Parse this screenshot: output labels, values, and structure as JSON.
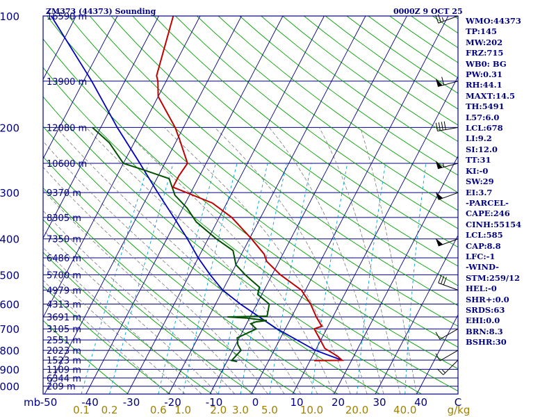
{
  "header": {
    "station": "ZM373 (44373) Sounding",
    "datetime": "0000Z  9 OCT 25"
  },
  "indices": [
    "WMO:44373",
    "TP:145",
    "MW:202",
    "FRZ:715",
    "WB0: BG",
    "PW:0.31",
    "RH:44.1",
    "MAXT:14.5",
    "TH:5491",
    "L57:6.0",
    "LCL:678",
    "LI:9.2",
    "SI:12.0",
    "TT:31",
    "KI:-0",
    "SW:29",
    "EI:3.7",
    "-PARCEL-",
    "CAPE:246",
    "CINH:55154",
    "LCL:585",
    "CAP:8.8",
    "LFC:-1",
    "-WIND-",
    "STM:259/12",
    "HEL:-0",
    "SHR+:0.0",
    "SRDS:63",
    "EHI:0.0",
    "BRN:8.3",
    "BSHR:30"
  ],
  "colors": {
    "frame": "#000080",
    "isobar": "#000080",
    "isotherm": "#000080",
    "dry_adiabat": "#00a000",
    "moist_adiabat": "#7a7a7a",
    "mixing_ratio": "#00a0d0",
    "temperature": "#c00000",
    "dewpoint": "#005000",
    "parcel": "#0000c0",
    "wind": "#000000",
    "axis_text": "#000080",
    "mixing_text": "#a08000"
  },
  "chart_data": {
    "type": "skew-t",
    "title": "ZM373 (44373) Sounding",
    "pressure_axis": {
      "unit": "mb",
      "range": [
        1050,
        100
      ],
      "ticks": [
        100,
        200,
        300,
        400,
        500,
        600,
        700,
        800,
        900,
        1000
      ]
    },
    "temperature_axis": {
      "unit": "C",
      "range": [
        -50,
        50
      ],
      "ticks": [
        -50,
        -40,
        -30,
        -20,
        -10,
        0,
        10,
        20,
        30,
        40
      ],
      "labels": [
        "-50",
        "-40",
        "-30",
        "-20",
        "-10",
        "0",
        "10",
        "20",
        "30",
        "40"
      ]
    },
    "mixing_ratio_axis": {
      "unit": "g/kg",
      "values": [
        0.1,
        0.2,
        0.6,
        1.0,
        2.0,
        3.0,
        5.0,
        10.0,
        20.0,
        40.0
      ],
      "labels": [
        "0.1",
        "0.2",
        "0.6",
        "1.0",
        "2.0",
        "3.0",
        "5.0",
        "10.0",
        "20.0",
        "40.0"
      ]
    },
    "heights": [
      {
        "p": 100,
        "label": "16590 m"
      },
      {
        "p": 150,
        "label": "13900 m"
      },
      {
        "p": 200,
        "label": "12080 m"
      },
      {
        "p": 250,
        "label": "10600 m"
      },
      {
        "p": 300,
        "label": "9370 m"
      },
      {
        "p": 350,
        "label": "8305 m"
      },
      {
        "p": 400,
        "label": "7350 m"
      },
      {
        "p": 450,
        "label": "6486 m"
      },
      {
        "p": 500,
        "label": "5700 m"
      },
      {
        "p": 550,
        "label": "4979 m"
      },
      {
        "p": 600,
        "label": "4313 m"
      },
      {
        "p": 650,
        "label": "3691 m"
      },
      {
        "p": 700,
        "label": "3105 m"
      },
      {
        "p": 750,
        "label": "2551 m"
      },
      {
        "p": 800,
        "label": "2023 m"
      },
      {
        "p": 850,
        "label": "1523 m"
      },
      {
        "p": 900,
        "label": "1109 m"
      },
      {
        "p": 950,
        "label": "6344 m"
      },
      {
        "p": 1000,
        "label": "209 m"
      }
    ],
    "temperature_profile": [
      [
        853,
        11.0
      ],
      [
        851,
        17.7
      ],
      [
        829,
        16.0
      ],
      [
        790,
        12.0
      ],
      [
        752,
        10.0
      ],
      [
        700,
        7.0
      ],
      [
        689,
        8.5
      ],
      [
        650,
        6.0
      ],
      [
        600,
        3.0
      ],
      [
        550,
        -1.0
      ],
      [
        500,
        -8.0
      ],
      [
        460,
        -13.0
      ],
      [
        440,
        -14.5
      ],
      [
        400,
        -19.5
      ],
      [
        350,
        -27.0
      ],
      [
        320,
        -33.5
      ],
      [
        300,
        -41.0
      ],
      [
        290,
        -45.0
      ],
      [
        270,
        -45.0
      ],
      [
        250,
        -44.5
      ],
      [
        215,
        -49.5
      ],
      [
        200,
        -52.0
      ],
      [
        165,
        -60.0
      ],
      [
        150,
        -62.0
      ],
      [
        145,
        -63.0
      ],
      [
        100,
        -66.5
      ]
    ],
    "dewpoint_profile": [
      [
        858,
        -7.5
      ],
      [
        852,
        -9.0
      ],
      [
        800,
        -8.0
      ],
      [
        772,
        -9.5
      ],
      [
        740,
        -10.5
      ],
      [
        700,
        -7.0
      ],
      [
        678,
        -9.0
      ],
      [
        670,
        -8.0
      ],
      [
        665,
        -5.5
      ],
      [
        655,
        -10.5
      ],
      [
        650,
        -15.5
      ],
      [
        647,
        -6.0
      ],
      [
        600,
        -7.0
      ],
      [
        565,
        -11.0
      ],
      [
        540,
        -11.5
      ],
      [
        520,
        -14.0
      ],
      [
        500,
        -16.5
      ],
      [
        470,
        -20.0
      ],
      [
        430,
        -22.5
      ],
      [
        400,
        -28.0
      ],
      [
        360,
        -35.0
      ],
      [
        330,
        -39.0
      ],
      [
        305,
        -43.5
      ],
      [
        275,
        -47.0
      ],
      [
        260,
        -54.5
      ],
      [
        250,
        -60.0
      ],
      [
        220,
        -66.0
      ],
      [
        200,
        -72.0
      ]
    ],
    "parcel_profile": [
      [
        851,
        17.7
      ],
      [
        800,
        10.0
      ],
      [
        700,
        -2.0
      ],
      [
        600,
        -14.0
      ],
      [
        550,
        -20.0
      ],
      [
        500,
        -25.0
      ],
      [
        450,
        -30.0
      ],
      [
        400,
        -35.0
      ],
      [
        350,
        -41.0
      ],
      [
        300,
        -48.0
      ],
      [
        250,
        -56.0
      ],
      [
        200,
        -66.0
      ],
      [
        150,
        -78.0
      ],
      [
        100,
        -96.0
      ]
    ],
    "wind_barbs": [
      {
        "p": 100,
        "dir": 250,
        "speed": 25
      },
      {
        "p": 150,
        "dir": 255,
        "speed": 60
      },
      {
        "p": 200,
        "dir": 260,
        "speed": 40
      },
      {
        "p": 250,
        "dir": 255,
        "speed": 55
      },
      {
        "p": 300,
        "dir": 250,
        "speed": 50
      },
      {
        "p": 400,
        "dir": 250,
        "speed": 50
      },
      {
        "p": 550,
        "dir": 290,
        "speed": 30
      },
      {
        "p": 700,
        "dir": 240,
        "speed": 10
      },
      {
        "p": 800,
        "dir": 240,
        "speed": 10
      },
      {
        "p": 850,
        "dir": 225,
        "speed": 15
      }
    ]
  }
}
